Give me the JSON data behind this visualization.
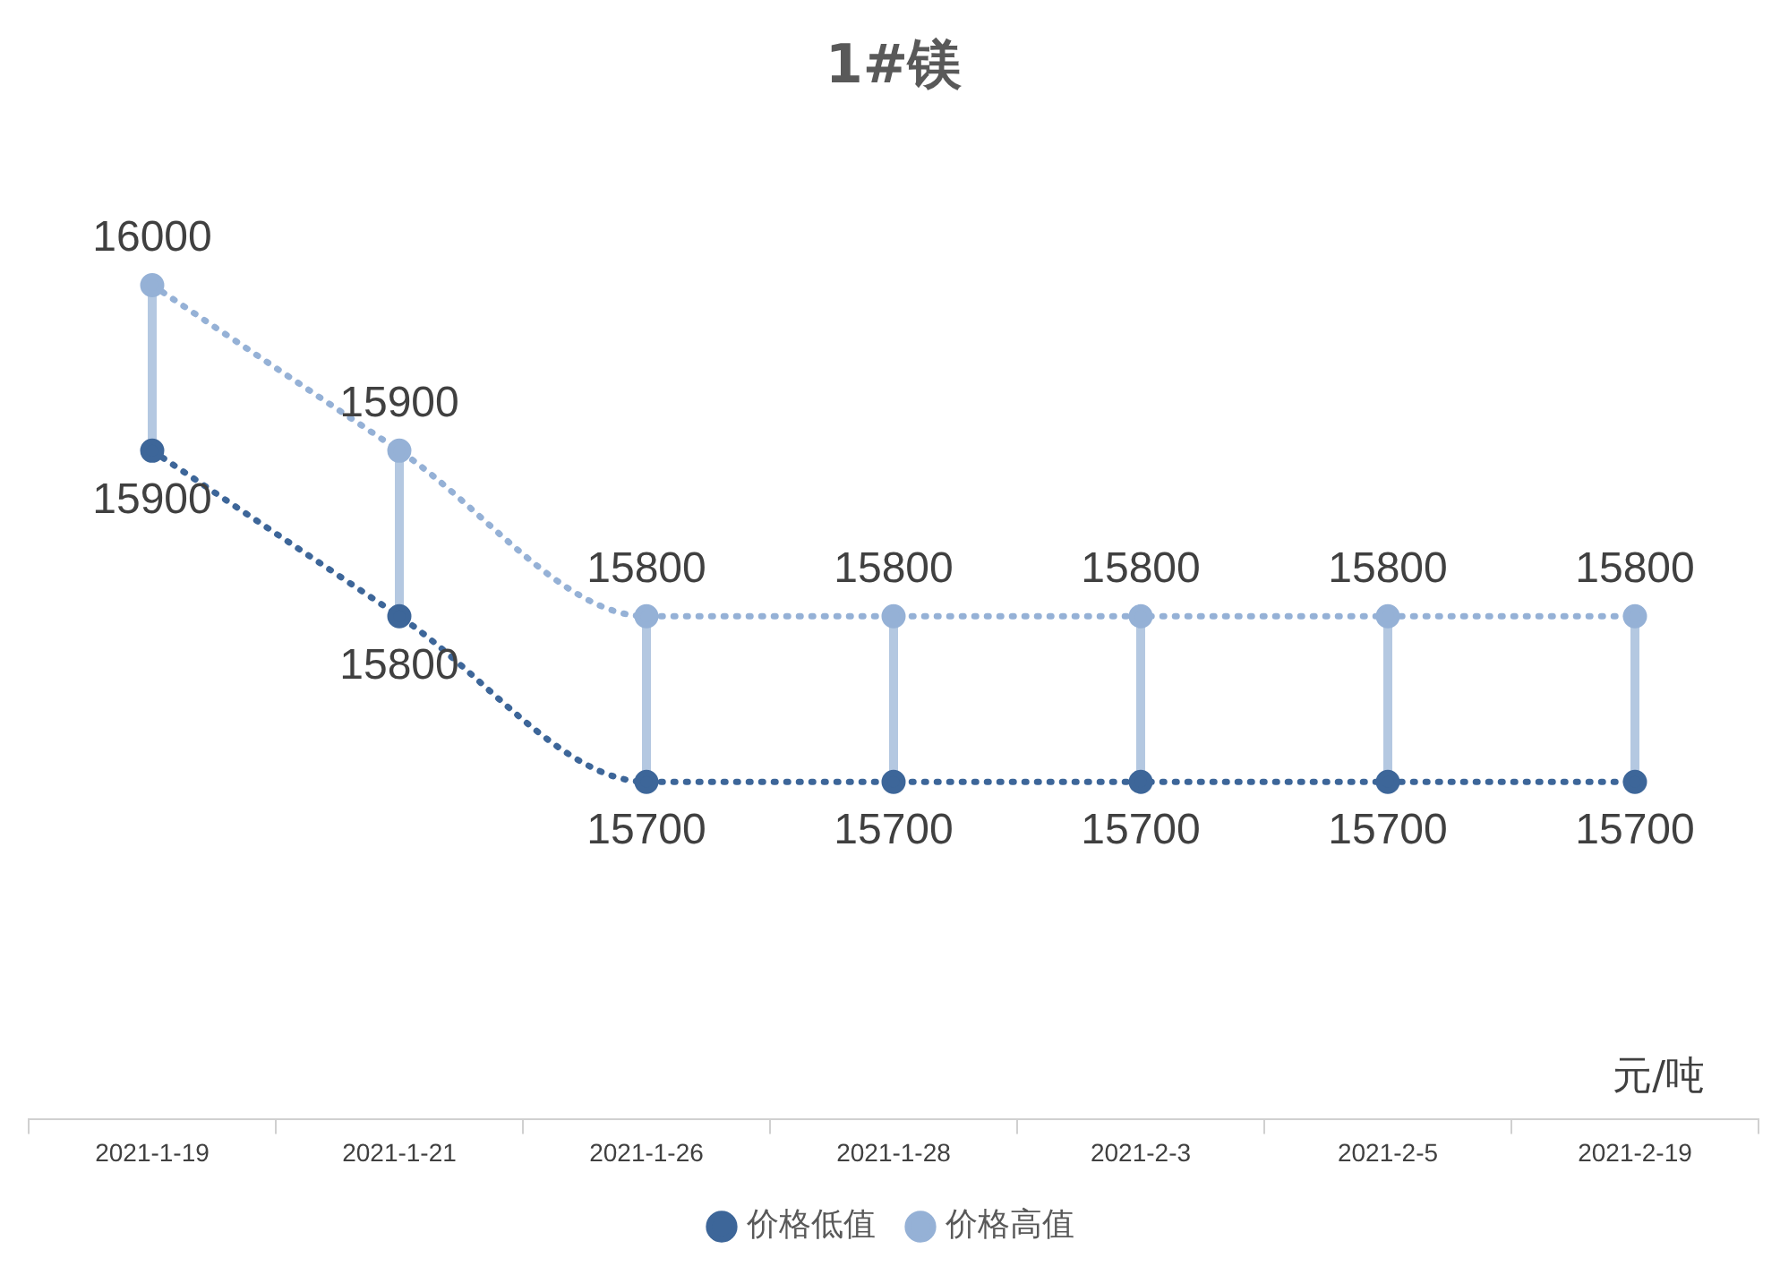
{
  "chart_data": {
    "type": "line",
    "title": "1#镁",
    "categories": [
      "2021-1-19",
      "2021-1-21",
      "2021-1-26",
      "2021-1-28",
      "2021-2-3",
      "2021-2-5",
      "2021-2-19"
    ],
    "series": [
      {
        "name": "价格低值",
        "color": "#3d6699",
        "values": [
          15900,
          15800,
          15700,
          15700,
          15700,
          15700,
          15700
        ]
      },
      {
        "name": "价格高值",
        "color": "#95b1d6",
        "values": [
          16000,
          15900,
          15800,
          15800,
          15800,
          15800,
          15800
        ]
      }
    ],
    "data_labels": true,
    "marker": "circle",
    "line_style": "dotted",
    "legend": "bottom",
    "grid": false,
    "tick_labels": "x",
    "annotations": [
      "元/吨"
    ]
  }
}
